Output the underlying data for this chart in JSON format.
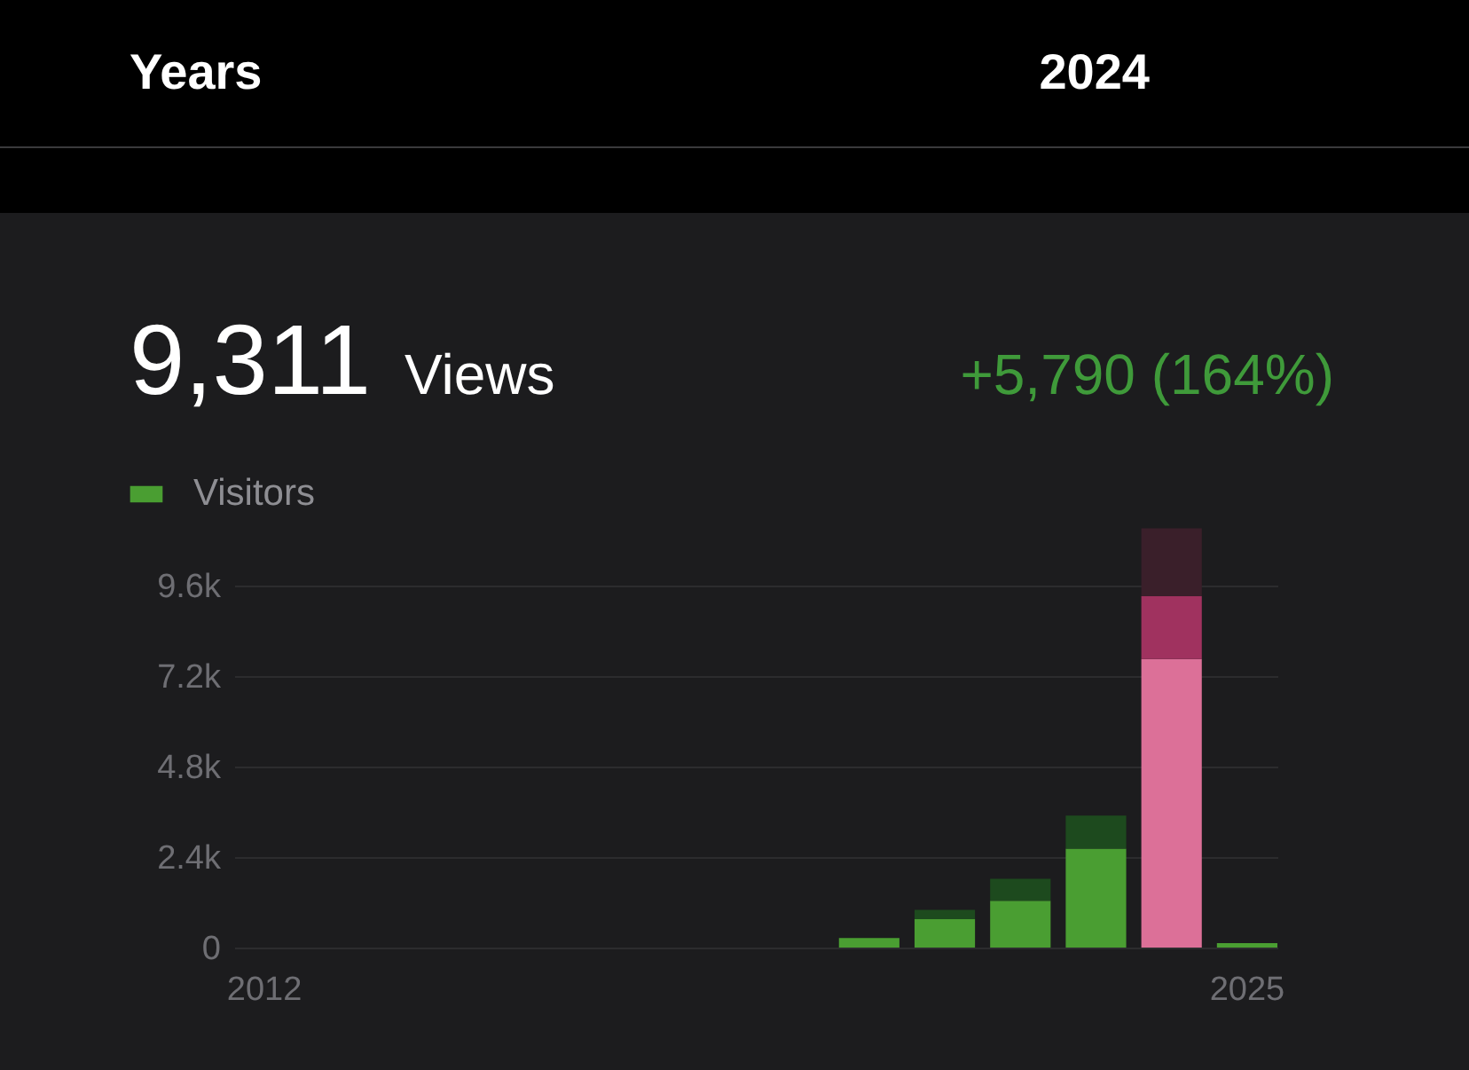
{
  "chart_data": {
    "type": "bar",
    "stacked": true,
    "title": "9,311",
    "subtitle": "Views",
    "annotations": [
      "Years",
      "2024",
      "+5,790 (164%)"
    ],
    "categories": [
      "2012",
      null,
      null,
      null,
      null,
      null,
      null,
      null,
      null,
      null,
      null,
      null,
      null,
      "2025"
    ],
    "series": [
      {
        "name": "Visitors",
        "color": "#4a9e32",
        "colors": [
          "#4a9e32",
          "#4a9e32",
          "#4a9e32",
          "#4a9e32",
          "#4a9e32",
          "#4a9e32",
          "#4a9e32",
          "#4a9e32",
          "#4a9e32",
          "#4a9e32",
          "#4a9e32",
          "#4a9e32",
          "#dc7098",
          "#4a9e32"
        ],
        "values": [
          null,
          null,
          null,
          null,
          null,
          null,
          null,
          null,
          250,
          750,
          1240,
          2620,
          7650,
          120
        ]
      },
      {
        "colors": [
          "#1d4a1e",
          "#1d4a1e",
          "#1d4a1e",
          "#1d4a1e",
          "#1d4a1e",
          "#1d4a1e",
          "#1d4a1e",
          "#1d4a1e",
          "#1d4a1e",
          "#1d4a1e",
          "#1d4a1e",
          "#1d4a1e",
          "#a0325f",
          "#1d4a1e"
        ],
        "values": [
          null,
          null,
          null,
          null,
          null,
          null,
          null,
          null,
          null,
          250,
          580,
          880,
          1660,
          null
        ]
      },
      {
        "colors": [
          "#3a1f2a",
          "#3a1f2a",
          "#3a1f2a",
          "#3a1f2a",
          "#3a1f2a",
          "#3a1f2a",
          "#3a1f2a",
          "#3a1f2a",
          "#3a1f2a",
          "#3a1f2a",
          "#3a1f2a",
          "#3a1f2a",
          "#3a1f2a",
          "#3a1f2a"
        ],
        "values": [
          null,
          null,
          null,
          null,
          null,
          null,
          null,
          null,
          null,
          null,
          null,
          null,
          1800,
          null
        ]
      }
    ],
    "ylim": [
      0,
      11100
    ],
    "yticks": [
      0,
      {
        "value": 2400,
        "label": "2.4k"
      },
      {
        "value": 4800,
        "label": "4.8k"
      },
      {
        "value": 7200,
        "label": "7.2k"
      },
      {
        "value": 9600,
        "label": "9.6k"
      }
    ],
    "grid": "y",
    "legend": "top left"
  }
}
